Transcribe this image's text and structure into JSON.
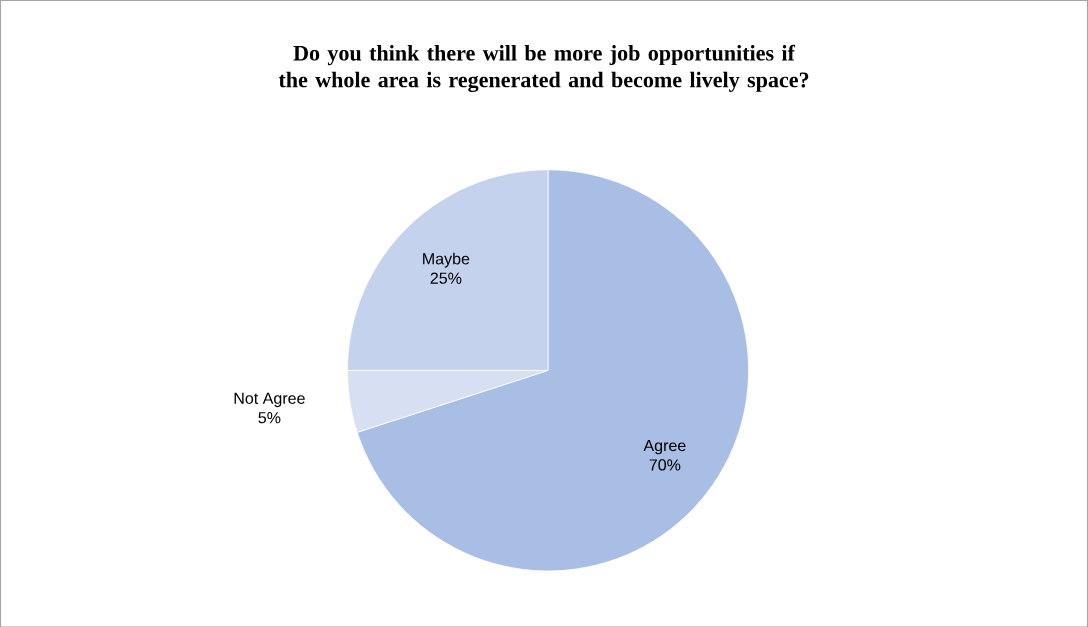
{
  "chart_data": {
    "type": "pie",
    "title": "Do you think there will be more job opportunities if the whole area is regenerated and become lively space?",
    "categories": [
      "Agree",
      "Not Agree",
      "Maybe"
    ],
    "values": [
      70,
      5,
      25
    ],
    "value_labels": [
      "70%",
      "5%",
      "25%"
    ],
    "colors": [
      "#a9bee4",
      "#d6e0f2",
      "#c4d2ee"
    ]
  }
}
